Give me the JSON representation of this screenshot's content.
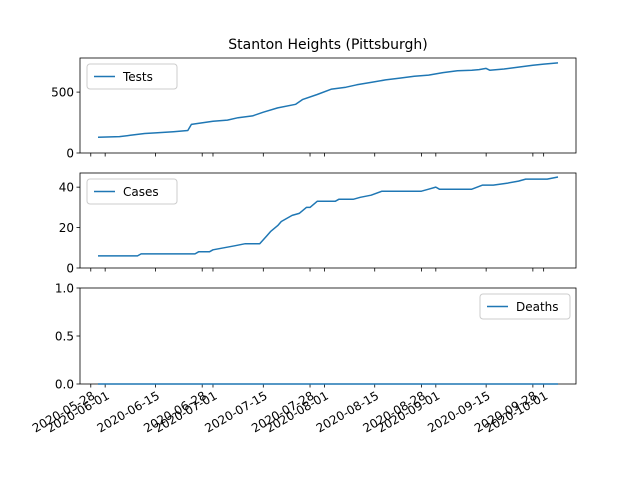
{
  "title": "Stanton Heights (Pittsburgh)",
  "chart_data": {
    "type": "line",
    "title": "Stanton Heights (Pittsburgh)",
    "x_date_range": [
      "2020-05-30",
      "2020-10-05"
    ],
    "x_tick_labels": [
      "2020-05-28",
      "2020-06-01",
      "2020-06-15",
      "2020-06-28",
      "2020-07-01",
      "2020-07-15",
      "2020-07-28",
      "2020-08-01",
      "2020-08-15",
      "2020-08-28",
      "2020-09-01",
      "2020-09-15",
      "2020-09-28",
      "2020-10-01"
    ],
    "x_tick_dates": [
      "2020-05-28",
      "2020-06-01",
      "2020-06-15",
      "2020-06-28",
      "2020-07-01",
      "2020-07-15",
      "2020-07-28",
      "2020-08-01",
      "2020-08-15",
      "2020-08-28",
      "2020-09-01",
      "2020-09-15",
      "2020-09-28",
      "2020-10-01"
    ],
    "x_axis_range": [
      "2020-05-25",
      "2020-10-10"
    ],
    "grid": false,
    "panels": [
      {
        "series": [
          {
            "name": "Tests",
            "color": "#1f77b4",
            "x": [
              "2020-05-30",
              "2020-06-05",
              "2020-06-08",
              "2020-06-12",
              "2020-06-15",
              "2020-06-20",
              "2020-06-24",
              "2020-06-25",
              "2020-07-01",
              "2020-07-05",
              "2020-07-08",
              "2020-07-12",
              "2020-07-15",
              "2020-07-19",
              "2020-07-24",
              "2020-07-26",
              "2020-07-30",
              "2020-08-03",
              "2020-08-07",
              "2020-08-10",
              "2020-08-14",
              "2020-08-18",
              "2020-08-22",
              "2020-08-26",
              "2020-08-30",
              "2020-09-03",
              "2020-09-07",
              "2020-09-11",
              "2020-09-13",
              "2020-09-15",
              "2020-09-16",
              "2020-09-20",
              "2020-09-24",
              "2020-09-28",
              "2020-10-01",
              "2020-10-05"
            ],
            "values": [
              130,
              135,
              145,
              160,
              165,
              175,
              185,
              235,
              260,
              270,
              290,
              305,
              335,
              370,
              400,
              440,
              480,
              525,
              540,
              560,
              580,
              600,
              615,
              630,
              640,
              660,
              675,
              680,
              685,
              695,
              680,
              690,
              705,
              720,
              730,
              740
            ]
          }
        ],
        "ylim": [
          0,
          780
        ],
        "yticks": [
          0,
          500
        ],
        "legend": "top-left"
      },
      {
        "series": [
          {
            "name": "Cases",
            "color": "#1f77b4",
            "x": [
              "2020-05-30",
              "2020-06-05",
              "2020-06-10",
              "2020-06-11",
              "2020-06-26",
              "2020-06-27",
              "2020-06-30",
              "2020-07-01",
              "2020-07-04",
              "2020-07-07",
              "2020-07-10",
              "2020-07-14",
              "2020-07-16",
              "2020-07-17",
              "2020-07-19",
              "2020-07-20",
              "2020-07-23",
              "2020-07-25",
              "2020-07-27",
              "2020-07-28",
              "2020-07-30",
              "2020-08-04",
              "2020-08-05",
              "2020-08-09",
              "2020-08-11",
              "2020-08-14",
              "2020-08-17",
              "2020-08-22",
              "2020-08-24",
              "2020-08-28",
              "2020-08-30",
              "2020-09-01",
              "2020-09-02",
              "2020-09-11",
              "2020-09-14",
              "2020-09-17",
              "2020-09-21",
              "2020-09-24",
              "2020-09-26",
              "2020-10-02",
              "2020-10-05"
            ],
            "values": [
              6,
              6,
              6,
              7,
              7,
              8,
              8,
              9,
              10,
              11,
              12,
              12,
              16,
              18,
              21,
              23,
              26,
              27,
              30,
              30,
              33,
              33,
              34,
              34,
              35,
              36,
              38,
              38,
              38,
              38,
              39,
              40,
              39,
              39,
              41,
              41,
              42,
              43,
              44,
              44,
              45
            ]
          }
        ],
        "ylim": [
          0,
          47
        ],
        "yticks": [
          0,
          20,
          40
        ],
        "legend": "top-left"
      },
      {
        "series": [
          {
            "name": "Deaths",
            "color": "#1f77b4",
            "x": [
              "2020-05-30",
              "2020-10-05"
            ],
            "values": [
              0,
              0
            ]
          }
        ],
        "ylim": [
          0,
          1.0
        ],
        "yticks": [
          0.0,
          0.5,
          1.0
        ],
        "ytick_labels": [
          "0.0",
          "0.5",
          "1.0"
        ],
        "legend": "top-right"
      }
    ]
  }
}
